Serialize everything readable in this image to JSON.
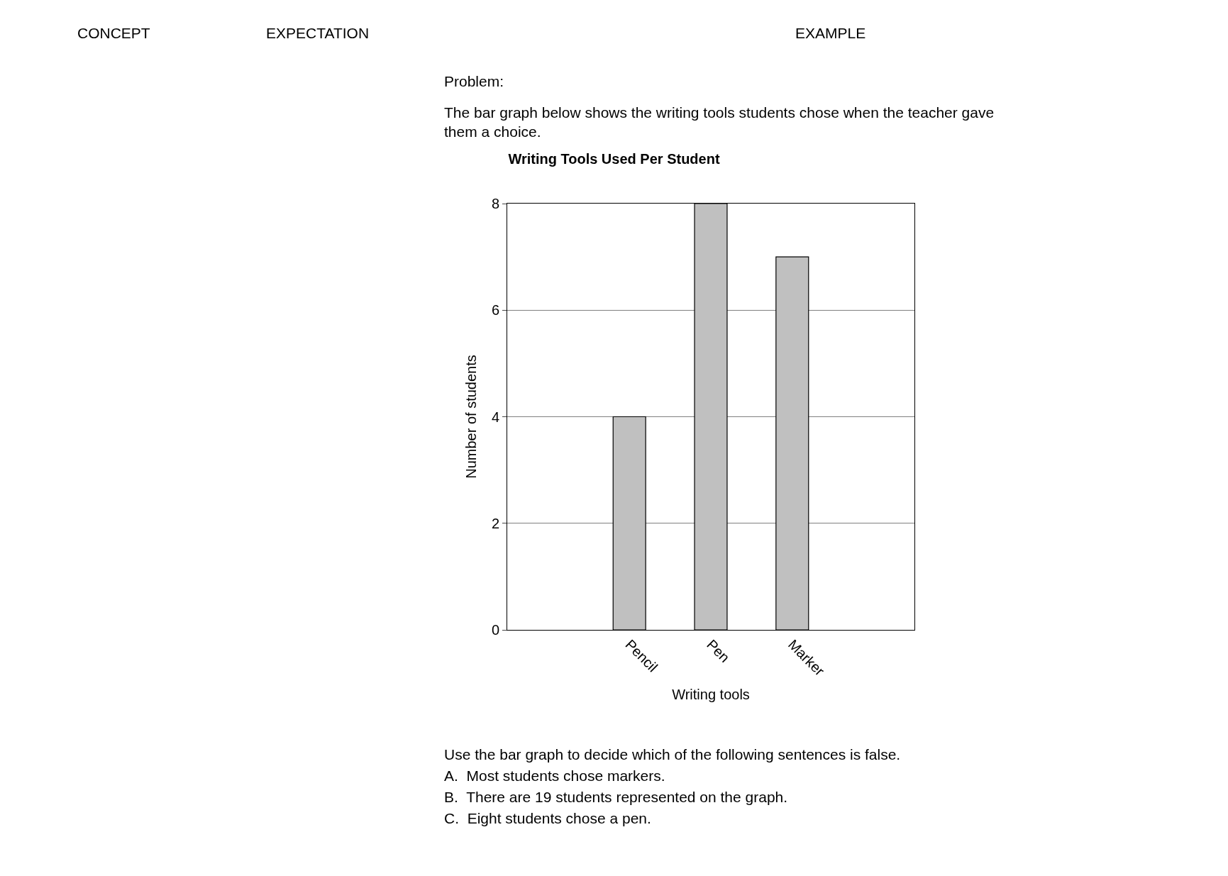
{
  "chart_data": {
    "type": "bar",
    "title": "Writing Tools Used Per Student",
    "xlabel": "Writing tools",
    "ylabel": "Number of students",
    "categories": [
      null,
      "Pencil",
      "Pen",
      "Marker",
      null
    ],
    "values": [
      null,
      4,
      8,
      7,
      null
    ],
    "color": "#c0c0c0",
    "ylim": [
      0,
      8
    ],
    "yticks": [
      0,
      2,
      4,
      6,
      8
    ],
    "grid": "y",
    "legend": false,
    "annotations": [
      "CONCEPT",
      "EXPECTATION",
      "EXAMPLE",
      "Problem:",
      "The bar graph below shows the writing tools students chose when the teacher gave them a choice.",
      "Use the bar graph to decide which of the following sentences is false.",
      "A.  Most students chose markers.",
      "B.  There are 19 students represented on the graph.",
      "C.  Eight students chose a pen."
    ]
  }
}
